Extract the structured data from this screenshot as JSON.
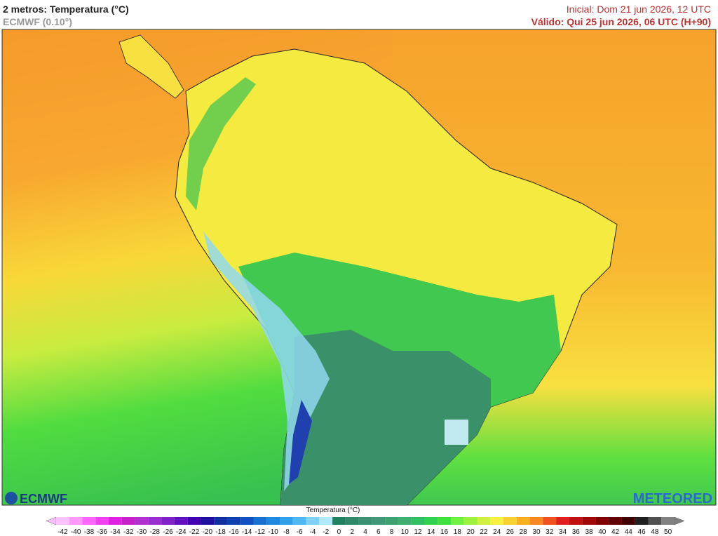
{
  "header": {
    "title": "2 metros: Temperatura (°C)",
    "model": "ECMWF (0.10°)",
    "initial": "Inicial: Dom 21 jun 2026, 12 UTC",
    "valid": "Válido: Qui 25 jun 2026, 06 UTC (H+90)"
  },
  "logos": {
    "left": "ECMWF",
    "right": "METEORED"
  },
  "colorbar": {
    "title": "Temperatura (°C)",
    "ticks": [
      -42,
      -40,
      -38,
      -36,
      -34,
      -32,
      -30,
      -28,
      -26,
      -24,
      -22,
      -20,
      -18,
      -16,
      -14,
      -12,
      -10,
      -8,
      -6,
      -4,
      -2,
      0,
      2,
      4,
      6,
      8,
      10,
      12,
      14,
      16,
      18,
      20,
      22,
      24,
      26,
      28,
      30,
      32,
      34,
      36,
      38,
      40,
      42,
      44,
      46,
      48,
      50
    ],
    "colors": [
      "#ffc0ff",
      "#ff99ff",
      "#ff66ff",
      "#f040f0",
      "#e020e0",
      "#c820c8",
      "#b030d0",
      "#9830d0",
      "#8020c8",
      "#6010c0",
      "#4000b0",
      "#2010a0",
      "#1030a0",
      "#1040b0",
      "#1050c0",
      "#1870d0",
      "#2088e0",
      "#30a0e8",
      "#50b8f0",
      "#80d0f8",
      "#b0e8ff",
      "#208060",
      "#308868",
      "#3a9070",
      "#409878",
      "#40a070",
      "#40b070",
      "#30c060",
      "#30d050",
      "#40e040",
      "#70f040",
      "#a0f040",
      "#d0f040",
      "#f8f040",
      "#f8d030",
      "#f8b020",
      "#f88820",
      "#f05020",
      "#e02020",
      "#c01010",
      "#a00808",
      "#800000",
      "#600000",
      "#400000",
      "#202020",
      "#505050",
      "#808080"
    ]
  }
}
